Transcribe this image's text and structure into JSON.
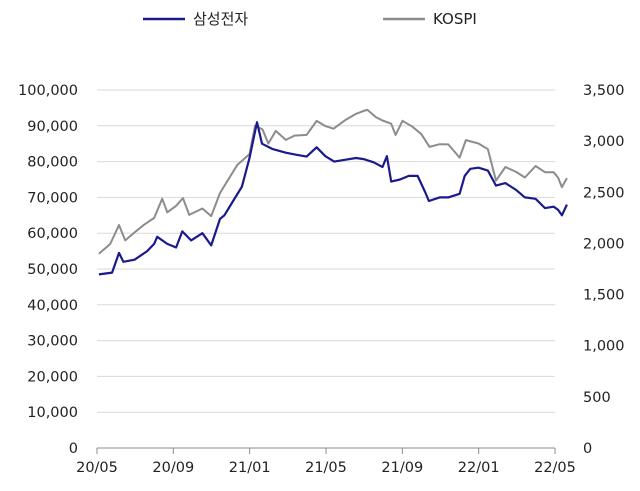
{
  "chart_data": {
    "type": "line",
    "grid": true,
    "legend_position": "top",
    "x_ticks": [
      "20/05",
      "20/09",
      "21/01",
      "21/05",
      "21/09",
      "22/01",
      "22/05"
    ],
    "x_range": [
      "2020-05-01",
      "2022-05-01"
    ],
    "y_left": {
      "range": [
        0,
        100000
      ],
      "ticks": [
        "0",
        "10,000",
        "20,000",
        "30,000",
        "40,000",
        "50,000",
        "60,000",
        "70,000",
        "80,000",
        "90,000",
        "100,000"
      ]
    },
    "y_right": {
      "range": [
        0,
        3500
      ],
      "ticks": [
        "0",
        "500",
        "1,000",
        "1,500",
        "2,000",
        "2,500",
        "3,000",
        "3,500"
      ]
    },
    "series": [
      {
        "name": "삼성전자",
        "color": "#1a1a8c",
        "axis": "left",
        "points": [
          [
            "2020-05-04",
            48500
          ],
          [
            "2020-05-25",
            49000
          ],
          [
            "2020-06-05",
            54500
          ],
          [
            "2020-06-12",
            52000
          ],
          [
            "2020-06-30",
            52600
          ],
          [
            "2020-07-20",
            55000
          ],
          [
            "2020-07-31",
            57000
          ],
          [
            "2020-08-05",
            59000
          ],
          [
            "2020-08-21",
            57000
          ],
          [
            "2020-09-04",
            56000
          ],
          [
            "2020-09-14",
            60500
          ],
          [
            "2020-09-28",
            58000
          ],
          [
            "2020-10-16",
            60000
          ],
          [
            "2020-10-30",
            56600
          ],
          [
            "2020-11-13",
            64000
          ],
          [
            "2020-11-20",
            65000
          ],
          [
            "2020-12-04",
            69000
          ],
          [
            "2020-12-18",
            73000
          ],
          [
            "2020-12-30",
            81000
          ],
          [
            "2021-01-11",
            91000
          ],
          [
            "2021-01-19",
            85000
          ],
          [
            "2021-02-05",
            83500
          ],
          [
            "2021-02-26",
            82500
          ],
          [
            "2021-03-12",
            82000
          ],
          [
            "2021-03-31",
            81400
          ],
          [
            "2021-04-16",
            84000
          ],
          [
            "2021-04-30",
            81500
          ],
          [
            "2021-05-14",
            80000
          ],
          [
            "2021-05-31",
            80500
          ],
          [
            "2021-06-18",
            81000
          ],
          [
            "2021-06-30",
            80700
          ],
          [
            "2021-07-16",
            79800
          ],
          [
            "2021-07-30",
            78500
          ],
          [
            "2021-08-06",
            81500
          ],
          [
            "2021-08-13",
            74400
          ],
          [
            "2021-08-27",
            75000
          ],
          [
            "2021-09-10",
            76000
          ],
          [
            "2021-09-24",
            76000
          ],
          [
            "2021-10-06",
            71500
          ],
          [
            "2021-10-12",
            69000
          ],
          [
            "2021-10-29",
            70000
          ],
          [
            "2021-11-12",
            70000
          ],
          [
            "2021-11-30",
            71000
          ],
          [
            "2021-12-08",
            76000
          ],
          [
            "2021-12-17",
            78000
          ],
          [
            "2021-12-30",
            78300
          ],
          [
            "2022-01-14",
            77500
          ],
          [
            "2022-01-27",
            73300
          ],
          [
            "2022-02-11",
            74000
          ],
          [
            "2022-02-28",
            72100
          ],
          [
            "2022-03-14",
            70000
          ],
          [
            "2022-03-31",
            69600
          ],
          [
            "2022-04-15",
            67000
          ],
          [
            "2022-04-29",
            67400
          ],
          [
            "2022-05-06",
            66500
          ],
          [
            "2022-05-12",
            65000
          ],
          [
            "2022-05-20",
            68000
          ]
        ]
      },
      {
        "name": "KOSPI",
        "color": "#8c8c8c",
        "axis": "right",
        "points": [
          [
            "2020-05-04",
            1900
          ],
          [
            "2020-05-22",
            1994
          ],
          [
            "2020-06-05",
            2180
          ],
          [
            "2020-06-15",
            2030
          ],
          [
            "2020-06-30",
            2108
          ],
          [
            "2020-07-15",
            2183
          ],
          [
            "2020-07-31",
            2249
          ],
          [
            "2020-08-13",
            2437
          ],
          [
            "2020-08-21",
            2304
          ],
          [
            "2020-09-04",
            2368
          ],
          [
            "2020-09-15",
            2443
          ],
          [
            "2020-09-25",
            2279
          ],
          [
            "2020-10-16",
            2341
          ],
          [
            "2020-10-30",
            2267
          ],
          [
            "2020-11-13",
            2493
          ],
          [
            "2020-11-27",
            2633
          ],
          [
            "2020-12-11",
            2770
          ],
          [
            "2020-12-30",
            2873
          ],
          [
            "2021-01-08",
            3152
          ],
          [
            "2021-01-20",
            3114
          ],
          [
            "2021-01-29",
            2976
          ],
          [
            "2021-02-10",
            3100
          ],
          [
            "2021-02-26",
            3012
          ],
          [
            "2021-03-12",
            3054
          ],
          [
            "2021-03-31",
            3061
          ],
          [
            "2021-04-16",
            3198
          ],
          [
            "2021-04-30",
            3147
          ],
          [
            "2021-05-13",
            3122
          ],
          [
            "2021-05-31",
            3203
          ],
          [
            "2021-06-18",
            3267
          ],
          [
            "2021-06-30",
            3296
          ],
          [
            "2021-07-06",
            3305
          ],
          [
            "2021-07-20",
            3232
          ],
          [
            "2021-07-30",
            3202
          ],
          [
            "2021-08-13",
            3171
          ],
          [
            "2021-08-20",
            3060
          ],
          [
            "2021-08-31",
            3199
          ],
          [
            "2021-09-16",
            3140
          ],
          [
            "2021-09-30",
            3068
          ],
          [
            "2021-10-13",
            2944
          ],
          [
            "2021-10-29",
            2970
          ],
          [
            "2021-11-12",
            2968
          ],
          [
            "2021-11-30",
            2839
          ],
          [
            "2021-12-10",
            3010
          ],
          [
            "2021-12-30",
            2977
          ],
          [
            "2022-01-14",
            2921
          ],
          [
            "2022-01-27",
            2614
          ],
          [
            "2022-02-11",
            2747
          ],
          [
            "2022-02-28",
            2699
          ],
          [
            "2022-03-14",
            2645
          ],
          [
            "2022-03-31",
            2757
          ],
          [
            "2022-04-15",
            2696
          ],
          [
            "2022-04-29",
            2695
          ],
          [
            "2022-05-06",
            2644
          ],
          [
            "2022-05-12",
            2550
          ],
          [
            "2022-05-20",
            2639
          ]
        ]
      }
    ]
  }
}
